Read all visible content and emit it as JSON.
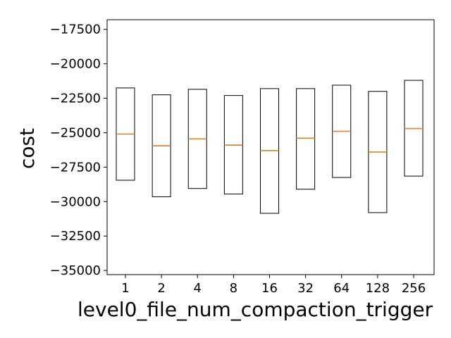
{
  "chart_data": {
    "type": "box",
    "xlabel": "level0_file_num_compaction_trigger",
    "ylabel": "cost",
    "ylim": [
      -35300,
      -16800
    ],
    "yticks": [
      -17500,
      -20000,
      -22500,
      -25000,
      -27500,
      -30000,
      -32500,
      -35000
    ],
    "ytick_labels": [
      "−17500",
      "−20000",
      "−22500",
      "−25000",
      "−27500",
      "−30000",
      "−32500",
      "−35000"
    ],
    "categories": [
      "1",
      "2",
      "4",
      "8",
      "16",
      "32",
      "64",
      "128",
      "256"
    ],
    "boxes": [
      {
        "q1": -28450,
        "median": -25100,
        "q3": -21750
      },
      {
        "q1": -29650,
        "median": -25950,
        "q3": -22250
      },
      {
        "q1": -29050,
        "median": -25450,
        "q3": -21850
      },
      {
        "q1": -29450,
        "median": -25900,
        "q3": -22300
      },
      {
        "q1": -30850,
        "median": -26300,
        "q3": -21800
      },
      {
        "q1": -29100,
        "median": -25400,
        "q3": -21800
      },
      {
        "q1": -28250,
        "median": -24900,
        "q3": -21550
      },
      {
        "q1": -30800,
        "median": -26400,
        "q3": -22000
      },
      {
        "q1": -28150,
        "median": -24700,
        "q3": -21200
      }
    ],
    "box_color": "#000000",
    "median_color": "#e08c3c",
    "grid": false
  }
}
